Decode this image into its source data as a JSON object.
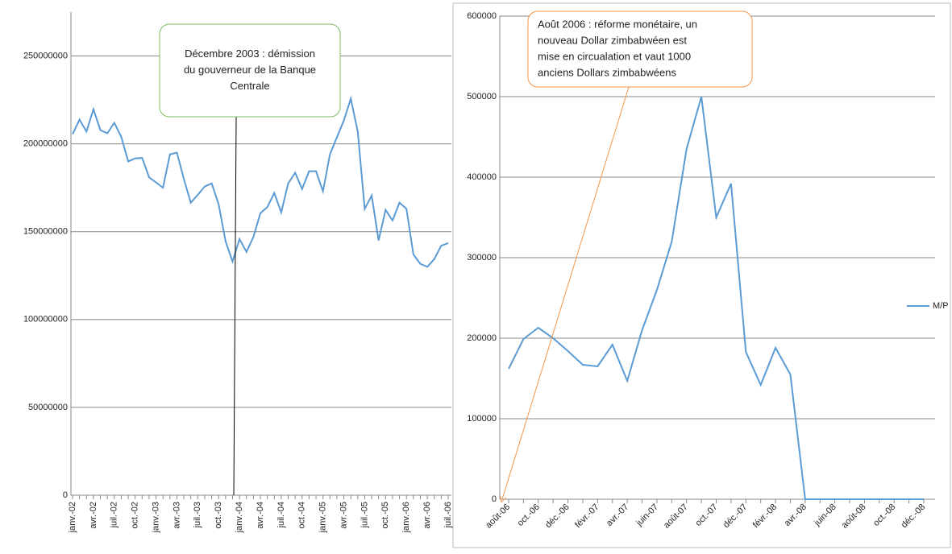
{
  "chart_data": [
    {
      "type": "line",
      "annotation": [
        "Décembre 2003 : démission",
        "du gouverneur  de la Banque",
        "Centrale"
      ],
      "categories": [
        "janv.-02",
        null,
        null,
        "avr.-02",
        null,
        null,
        "juil.-02",
        null,
        null,
        "oct.-02",
        null,
        null,
        "janv.-03",
        null,
        null,
        "avr.-03",
        null,
        null,
        "juil.-03",
        null,
        null,
        "oct.-03",
        null,
        null,
        "janv.-04",
        null,
        null,
        "avr.-04",
        null,
        null,
        "juil.-04",
        null,
        null,
        "oct.-04",
        null,
        null,
        "janv.-05",
        null,
        null,
        "avr.-05",
        null,
        null,
        "juil.-05",
        null,
        null,
        "oct.-05",
        null,
        null,
        "janv.-06",
        null,
        null,
        "avr.-06",
        null,
        null,
        "juil.-06"
      ],
      "series": [
        {
          "color": "#5b9bd5",
          "values": [
            205500000,
            213800000,
            207000000,
            219700000,
            207800000,
            206000000,
            212000000,
            204000000,
            190000000,
            191700000,
            192000000,
            181000000,
            178000000,
            175000000,
            194000000,
            195000000,
            180000000,
            166500000,
            171000000,
            175700000,
            177500000,
            165600000,
            144500000,
            133000000,
            145800000,
            138500000,
            147000000,
            160500000,
            164000000,
            172000000,
            161000000,
            177500000,
            183500000,
            174300000,
            184400000,
            184400000,
            173000000,
            194000000,
            203700000,
            213300000,
            225700000,
            207000000,
            163000000,
            170600000,
            145000000,
            162400000,
            156400000,
            166500000,
            163000000,
            137000000,
            131700000,
            130000000,
            134400000,
            142000000,
            143500000
          ]
        }
      ],
      "ylim": [
        0,
        275000000
      ],
      "yticks": [
        0,
        50000000,
        100000000,
        150000000,
        200000000,
        250000000
      ],
      "grid": true
    },
    {
      "type": "line",
      "annotation": [
        "Août 2006 : réforme monétaire, un",
        "nouveau Dollar zimbabwéen est",
        "mise en circualation et  vaut 1000",
        "anciens Dollars zimbabwéens"
      ],
      "categories": [
        "août-06",
        null,
        "oct.-06",
        null,
        "déc.-06",
        null,
        "févr.-07",
        null,
        "avr.-07",
        null,
        "juin-07",
        null,
        "août-07",
        null,
        "oct.-07",
        null,
        "déc.-07",
        null,
        "févr.-08",
        null,
        "avr.-08",
        null,
        "juin-08",
        null,
        "août-08",
        null,
        "oct.-08",
        null,
        "déc.-08"
      ],
      "series": [
        {
          "name": "M/P",
          "color": "#5b9bd5",
          "values": [
            162000,
            199000,
            213000,
            200000,
            184000,
            167000,
            165000,
            192000,
            147000,
            210000,
            260000,
            320000,
            435000,
            500000,
            350000,
            392000,
            183000,
            142000,
            188000,
            155000,
            0,
            0,
            0,
            0,
            0,
            0,
            0,
            0,
            0
          ]
        }
      ],
      "ylim": [
        0,
        600000
      ],
      "yticks": [
        0,
        100000,
        200000,
        300000,
        400000,
        500000,
        600000
      ],
      "grid": true,
      "legend": "right"
    }
  ]
}
